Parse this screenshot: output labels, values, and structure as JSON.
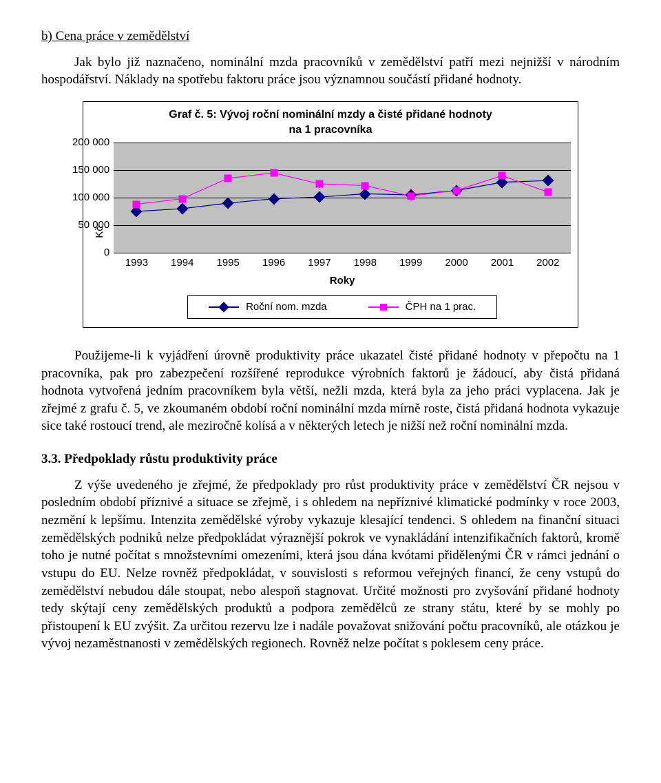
{
  "section_b": "b) Cena práce v zemědělství",
  "para1": "Jak bylo již naznačeno, nominální mzda pracovníků v zemědělství patří mezi nejnižší v národním hospodářství. Náklady na spotřebu faktoru práce jsou významnou součástí přidané hodnoty.",
  "chart": {
    "type": "line",
    "title_line1": "Graf č. 5: Vývoj roční nominální mzdy a čisté přidané hodnoty",
    "title_line2": "na 1 pracovníka",
    "y_label": "Kč",
    "y_ticks": [
      "200 000",
      "150 000",
      "100 000",
      "50 000",
      "0"
    ],
    "ylim": [
      0,
      200000
    ],
    "x_ticks": [
      "1993",
      "1994",
      "1995",
      "1996",
      "1997",
      "1998",
      "1999",
      "2000",
      "2001",
      "2002"
    ],
    "x_label": "Roky",
    "plot_bg": "#c0c0c0",
    "grid_color": "#000000",
    "series": [
      {
        "name": "Roční nom. mzda",
        "color": "#000080",
        "marker": "diamond",
        "values": [
          75000,
          80000,
          90000,
          98000,
          101000,
          107000,
          105000,
          113000,
          128000,
          131000
        ]
      },
      {
        "name": "ČPH na 1 prac.",
        "color": "#ff00ff",
        "marker": "square",
        "values": [
          88000,
          98000,
          135000,
          145000,
          125000,
          122000,
          103000,
          113000,
          140000,
          110000
        ]
      }
    ]
  },
  "para2": "Použijeme-li k vyjádření úrovně produktivity práce ukazatel čisté přidané hodnoty v přepočtu na 1 pracovníka, pak pro zabezpečení rozšířené reprodukce výrobních faktorů je žádoucí, aby čistá přidaná hodnota vytvořená jedním pracovníkem byla větší, nežli mzda, která byla za jeho práci vyplacena. Jak je zřejmé z grafu č. 5, ve zkoumaném období roční nominální mzda mírně roste, čistá přidaná hodnota vykazuje sice také rostoucí trend, ale meziročně kolísá a v některých letech je nižší než roční nominální mzda.",
  "subheading": "3.3. Předpoklady růstu produktivity práce",
  "para3": "Z výše uvedeného je zřejmé, že předpoklady pro růst produktivity práce v zemědělství ČR nejsou v posledním období příznivé a situace se zřejmě, i s ohledem na nepříznivé klimatické podmínky v roce 2003, nezmění k lepšímu. Intenzita zemědělské výroby vykazuje klesající tendenci. S ohledem na finanční situaci zemědělských podniků nelze předpokládat výraznější pokrok ve vynakládání intenzifikačních faktorů, kromě toho je nutné počítat s množstevními omezeními, která jsou dána kvótami přidělenými ČR v rámci jednání o vstupu do EU. Nelze rovněž předpokládat, v souvislosti s reformou veřejných financí, že ceny vstupů do zemědělství nebudou dále stoupat, nebo alespoň stagnovat. Určité možnosti pro zvyšování přidané hodnoty tedy skýtají ceny zemědělských produktů a podpora zemědělců ze strany státu, které by se mohly po přistoupení k EU zvýšit. Za určitou rezervu lze i nadále považovat snižování počtu pracovníků, ale otázkou je vývoj nezaměstnanosti v zemědělských regionech. Rovněž nelze počítat s poklesem ceny práce."
}
